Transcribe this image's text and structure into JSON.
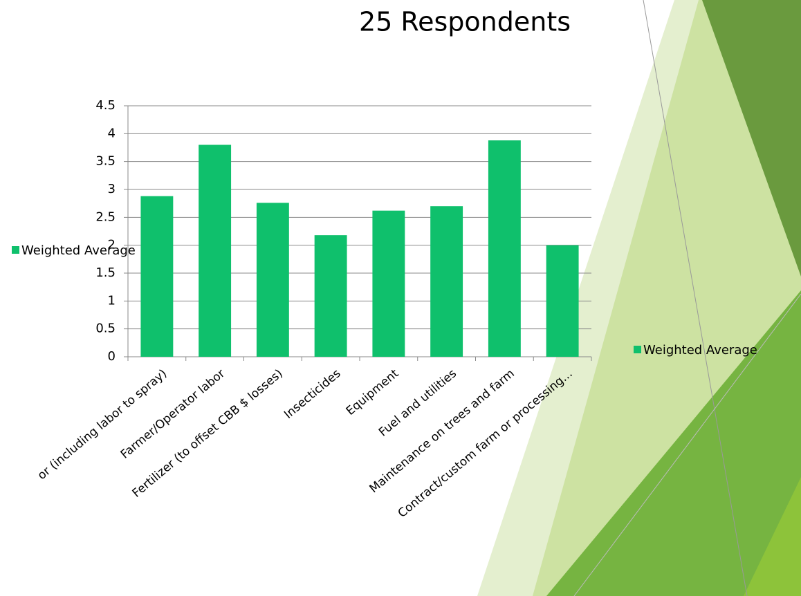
{
  "chart_data": {
    "type": "bar",
    "title": "25 Respondents",
    "categories": [
      "or (including labor to spray)",
      "Farmer/Operator labor",
      "Fertilizer (to offset CBB $ losses)",
      "Insecticides",
      "Equipment",
      "Fuel and utilities",
      "Maintenance on trees and farm",
      "Contract/custom farm or processing..."
    ],
    "series": [
      {
        "name": "Weighted Average",
        "color": "#0fc06c",
        "values": [
          2.88,
          3.8,
          2.76,
          2.18,
          2.62,
          2.7,
          3.88,
          2.0
        ]
      }
    ],
    "ylim": [
      0,
      4.5
    ],
    "yticks": [
      0,
      0.5,
      1,
      1.5,
      2,
      2.5,
      3,
      3.5,
      4,
      4.5
    ],
    "grid": true
  }
}
